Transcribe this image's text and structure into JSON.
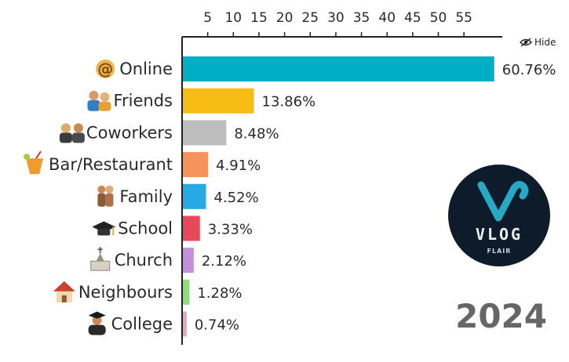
{
  "colors": {
    "bars": [
      "#00afc4",
      "#f7bd14",
      "#bdbdbd",
      "#f6925a",
      "#27a9e6",
      "#e8485c",
      "#c58fdc",
      "#8fdc7a",
      "#e7a6bf"
    ],
    "axis": "#222222",
    "year": "#666666",
    "logo_bg": "#0e1b2a",
    "logo_v": "#27a9c4"
  },
  "icons": [
    "at-sign-icon",
    "friends-icon",
    "coworkers-icon",
    "cocktail-icon",
    "family-icon",
    "graduation-cap-icon",
    "church-icon",
    "house-icon",
    "graduate-icon"
  ],
  "chart_data": {
    "type": "bar",
    "orientation": "horizontal",
    "categories": [
      "Online",
      "Friends",
      "Coworkers",
      "Bar/Restaurant",
      "Family",
      "School",
      "Church",
      "Neighbours",
      "College"
    ],
    "values": [
      60.76,
      13.86,
      8.48,
      4.91,
      4.52,
      3.33,
      2.12,
      1.28,
      0.74
    ],
    "value_labels": [
      "60.76%",
      "13.86%",
      "8.48%",
      "4.91%",
      "4.52%",
      "3.33%",
      "2.12%",
      "1.28%",
      "0.74%"
    ],
    "x_ticks": [
      5,
      10,
      15,
      20,
      25,
      30,
      35,
      40,
      45,
      50,
      55
    ],
    "xlim": [
      0,
      60
    ],
    "axis_position": "top",
    "grid": false
  },
  "year": "2024",
  "hide_button": {
    "label": "Hide"
  },
  "logo": {
    "word": "VLOG",
    "subword": "FLAIR"
  }
}
